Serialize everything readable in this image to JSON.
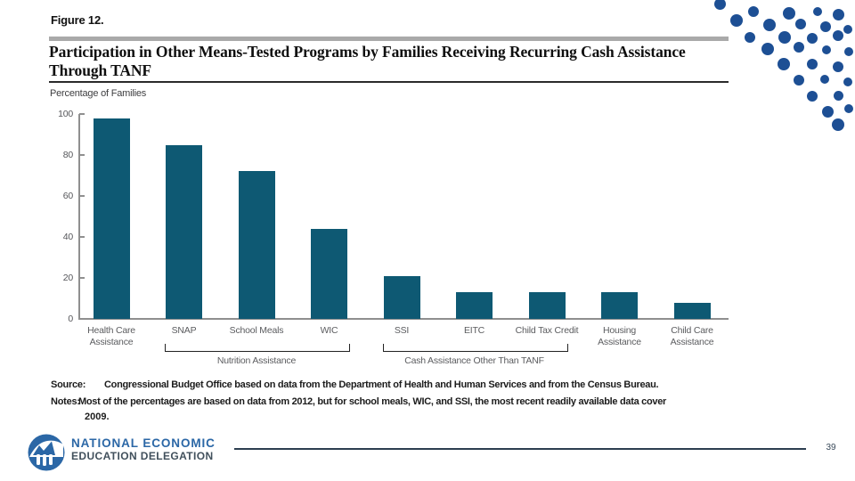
{
  "slide": {
    "figure_label": "Figure 12.",
    "title_line1": "Participation in Other Means-Tested Programs by Families Receiving Recurring Cash Assistance",
    "title_line2": "Through TANF",
    "axis_title": "Percentage of Families",
    "page_number": "39"
  },
  "source": {
    "label": "Source:",
    "text": "Congressional Budget Office based on data from the Department of Health and Human Services and from the Census Bureau."
  },
  "notes": {
    "label": "Notes:",
    "line1": "Most of the percentages are based on data from 2012, but for school meals, WIC, and SSI, the most recent readily available data cover",
    "line2": "2009."
  },
  "footer": {
    "org_line1": "NATIONAL ECONOMIC",
    "org_line2": "EDUCATION DELEGATION",
    "logo_blue": "#2b67a6"
  },
  "chart_data": {
    "type": "bar",
    "title": "Participation in Other Means-Tested Programs by Families Receiving Recurring Cash Assistance Through TANF",
    "ylabel": "Percentage of Families",
    "ylim": [
      0,
      100
    ],
    "yticks": [
      0,
      20,
      40,
      60,
      80,
      100
    ],
    "grid": false,
    "categories": [
      "Health Care\nAssistance",
      "SNAP",
      "School Meals",
      "WIC",
      "SSI",
      "EITC",
      "Child Tax Credit",
      "Housing\nAssistance",
      "Child Care\nAssistance"
    ],
    "values": [
      98,
      85,
      72,
      44,
      21,
      13,
      13,
      13,
      8
    ],
    "bar_color": "#0e5973",
    "groups": [
      {
        "label": "Nutrition Assistance",
        "from": 1,
        "to": 3
      },
      {
        "label": "Cash Assistance Other Than TANF",
        "from": 4,
        "to": 6
      }
    ]
  },
  "decor": {
    "dot_color": "#1d4f94",
    "dots": [
      [
        808,
        4,
        6.5
      ],
      [
        846,
        13,
        6
      ],
      [
        886,
        15,
        7
      ],
      [
        918,
        13,
        5
      ],
      [
        941,
        16,
        6.5
      ],
      [
        827,
        23,
        7
      ],
      [
        864,
        28,
        7
      ],
      [
        899,
        27,
        6
      ],
      [
        927,
        30,
        6
      ],
      [
        952,
        33,
        5
      ],
      [
        842,
        42,
        6
      ],
      [
        881,
        42,
        7
      ],
      [
        912,
        43,
        6
      ],
      [
        941,
        40,
        6
      ],
      [
        862,
        55,
        7
      ],
      [
        897,
        53,
        6
      ],
      [
        928,
        56,
        5
      ],
      [
        953,
        58,
        5
      ],
      [
        880,
        72,
        7
      ],
      [
        912,
        72,
        6
      ],
      [
        941,
        75,
        6
      ],
      [
        897,
        90,
        6
      ],
      [
        926,
        89,
        5
      ],
      [
        952,
        92,
        5
      ],
      [
        912,
        108,
        6
      ],
      [
        941,
        107,
        5.5
      ],
      [
        929,
        125,
        6.5
      ],
      [
        953,
        122,
        5
      ],
      [
        941,
        140,
        7
      ]
    ]
  }
}
